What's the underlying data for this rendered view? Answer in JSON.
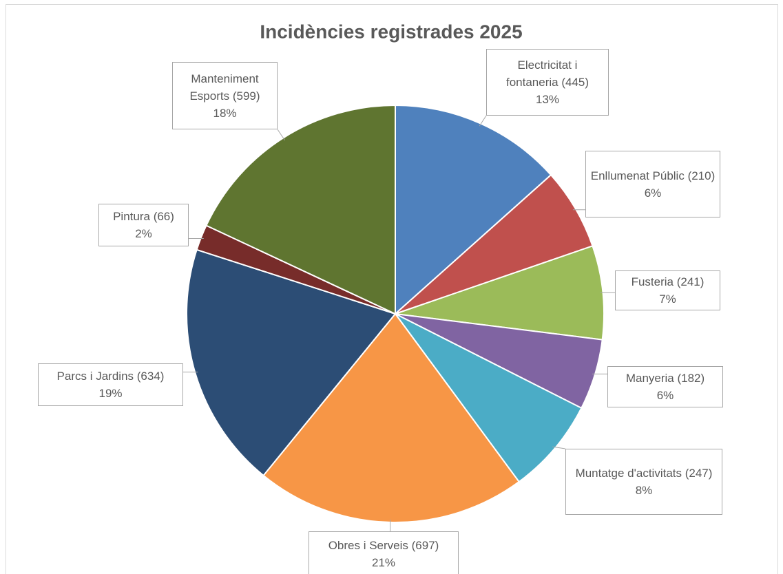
{
  "chart_data": {
    "type": "pie",
    "title": "Incidències registrades 2025",
    "categories": [
      "Electricitat i fontaneria",
      "Enllumenat Públic",
      "Fusteria",
      "Manyeria",
      "Muntatge d'activitats",
      "Obres i Serveis",
      "Parcs i Jardins",
      "Pintura",
      "Manteniment Esports"
    ],
    "values": [
      445,
      210,
      241,
      182,
      247,
      697,
      634,
      66,
      599
    ],
    "value_labels": [
      "(445)",
      "(210)",
      "(241)",
      "(182)",
      "(247)",
      "(697)",
      "(634)",
      "(66)",
      "(599)"
    ],
    "percent_labels": [
      "13%",
      "6%",
      "7%",
      "6%",
      "8%",
      "21%",
      "19%",
      "2%",
      "18%"
    ],
    "colors": [
      "#4f81bd",
      "#c0504d",
      "#9bbb59",
      "#8064a2",
      "#4bacc6",
      "#f79646",
      "#2c4d75",
      "#772c2a",
      "#5f7530"
    ]
  }
}
